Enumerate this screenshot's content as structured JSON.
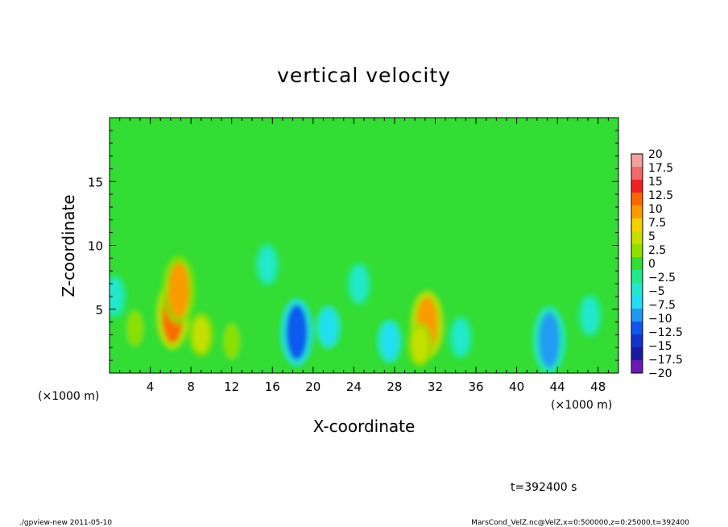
{
  "chart_data": {
    "type": "heatmap",
    "title": "vertical velocity",
    "xlabel": "X-coordinate",
    "ylabel": "Z-coordinate",
    "x_unit_left": "(×1000 m)",
    "x_unit_right": "(×1000 m)",
    "xlim": [
      0,
      50
    ],
    "ylim": [
      0,
      20
    ],
    "x_ticks": [
      4,
      8,
      12,
      16,
      20,
      24,
      28,
      32,
      36,
      40,
      44,
      48
    ],
    "y_ticks": [
      5,
      10,
      15
    ],
    "grid": false,
    "colorbar": {
      "placement": "right",
      "levels": [
        20,
        17.5,
        15,
        12.5,
        10,
        7.5,
        5,
        2.5,
        0,
        -2.5,
        -5,
        -7.5,
        -10,
        -12.5,
        -15,
        -17.5,
        -20
      ],
      "labels": [
        "20",
        "17.5",
        "15",
        "12.5",
        "10",
        "7.5",
        "5",
        "2.5",
        "0",
        "−2.5",
        "−5",
        "−7.5",
        "−10",
        "−12.5",
        "−15",
        "−17.5",
        "−20"
      ],
      "colors": [
        "#f4a0a0",
        "#f26a6a",
        "#ee2222",
        "#ff6600",
        "#ff9900",
        "#f5d000",
        "#c8e000",
        "#8fe000",
        "#33dd33",
        "#22e88a",
        "#22e8d0",
        "#22ddf5",
        "#2299f5",
        "#1155f0",
        "#1133cc",
        "#1a1aa0",
        "#6a1ab4"
      ]
    },
    "features": [
      {
        "x": 6.2,
        "z": 4.5,
        "value": 12.5
      },
      {
        "x": 6.8,
        "z": 6.5,
        "value": 11
      },
      {
        "x": 9.0,
        "z": 3.0,
        "value": 6
      },
      {
        "x": 2.5,
        "z": 3.5,
        "value": 3
      },
      {
        "x": 18.4,
        "z": 3.2,
        "value": -12.5
      },
      {
        "x": 21.5,
        "z": 3.6,
        "value": -6
      },
      {
        "x": 27.5,
        "z": 2.5,
        "value": -6
      },
      {
        "x": 31.2,
        "z": 3.8,
        "value": 12
      },
      {
        "x": 30.5,
        "z": 2.2,
        "value": 6
      },
      {
        "x": 34.5,
        "z": 2.8,
        "value": -4
      },
      {
        "x": 43.2,
        "z": 2.6,
        "value": -10
      },
      {
        "x": 47.2,
        "z": 4.5,
        "value": -5
      },
      {
        "x": 0.5,
        "z": 6.0,
        "value": -5
      },
      {
        "x": 15.5,
        "z": 8.5,
        "value": -4
      },
      {
        "x": 24.5,
        "z": 7.0,
        "value": -3
      },
      {
        "x": 12.0,
        "z": 2.5,
        "value": 3
      }
    ]
  },
  "annotations": {
    "time": "t=392400 s",
    "footer_left": "./gpview-new   2011-05-10",
    "footer_right": "MarsCond_VelZ.nc@VelZ,x=0:500000,z=0:25000,t=392400"
  }
}
